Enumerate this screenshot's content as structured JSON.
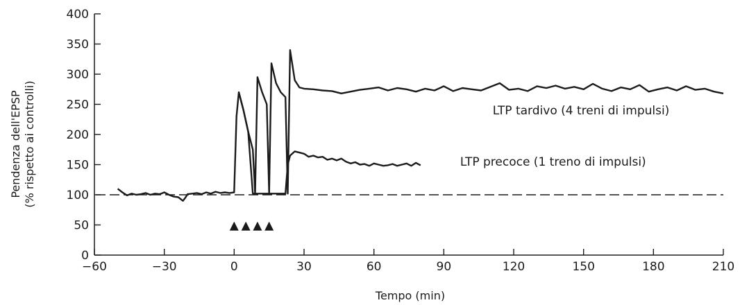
{
  "chart_data": {
    "type": "line",
    "xlabel": "Tempo (min)",
    "ylabel_lines": [
      "Pendenza dell'EPSP",
      "(% rispetto ai controlli)"
    ],
    "xlim": [
      -60,
      210
    ],
    "ylim": [
      0,
      400
    ],
    "x_ticks": [
      -60,
      -30,
      0,
      30,
      60,
      90,
      120,
      150,
      180,
      210
    ],
    "x_tick_labels": [
      "−60",
      "−30",
      "0",
      "30",
      "60",
      "90",
      "120",
      "150",
      "180",
      "210"
    ],
    "y_ticks": [
      0,
      50,
      100,
      150,
      200,
      250,
      300,
      350,
      400
    ],
    "y_tick_labels": [
      "0",
      "50",
      "100",
      "150",
      "200",
      "250",
      "300",
      "350",
      "400"
    ],
    "grid": false,
    "reference_line": {
      "y": 100,
      "style": "dashed"
    },
    "stimulus_markers": {
      "symbol": "▲",
      "x": [
        0,
        5,
        10,
        15
      ],
      "y": 50
    },
    "annotations": [
      {
        "text": "LTP tardivo (4 treni di impulsi)",
        "x": 111,
        "y": 240
      },
      {
        "text": "LTP precoce (1 treno di impulsi)",
        "x": 97,
        "y": 155
      }
    ],
    "series": [
      {
        "color": "#1a1a1a",
        "x": [
          -50,
          -48,
          -46,
          -44,
          -42,
          -40,
          -38,
          -36,
          -34,
          -32,
          -30,
          -28,
          -26,
          -24,
          -22,
          -21,
          -20,
          -18,
          -16,
          -14,
          -12,
          -10,
          -8,
          -6,
          -4,
          -2,
          0,
          1,
          2,
          4,
          6,
          8,
          9,
          10,
          12,
          14,
          15,
          16,
          18,
          20,
          22,
          23,
          24,
          26,
          28,
          30,
          32,
          34,
          36,
          38,
          40,
          42,
          44,
          46,
          48,
          50,
          52,
          54,
          56,
          58,
          60,
          62,
          64,
          66,
          68,
          70,
          72,
          74,
          76,
          78,
          80
        ],
        "y": [
          110,
          104,
          99,
          102,
          100,
          101,
          103,
          100,
          102,
          101,
          104,
          100,
          97,
          96,
          90,
          95,
          101,
          102,
          103,
          101,
          104,
          102,
          105,
          103,
          104,
          103,
          104,
          230,
          270,
          240,
          205,
          102,
          102,
          102,
          102,
          102,
          102,
          102,
          102,
          102,
          102,
          150,
          165,
          172,
          170,
          168,
          163,
          165,
          162,
          163,
          158,
          160,
          157,
          160,
          155,
          152,
          154,
          150,
          151,
          148,
          152,
          150,
          148,
          149,
          151,
          148,
          150,
          152,
          148,
          153,
          149
        ]
      },
      {
        "color": "#1a1a1a",
        "x": [
          2,
          4,
          6,
          8,
          9,
          10,
          12,
          14,
          15,
          16,
          18,
          20,
          22,
          23,
          24,
          26,
          28,
          30,
          34,
          38,
          42,
          46,
          50,
          54,
          58,
          62,
          66,
          70,
          74,
          78,
          82,
          86,
          90,
          94,
          98,
          102,
          106,
          110,
          114,
          118,
          122,
          126,
          130,
          134,
          138,
          142,
          146,
          150,
          154,
          158,
          162,
          166,
          170,
          174,
          178,
          182,
          186,
          190,
          194,
          198,
          202,
          206,
          210
        ],
        "y": [
          270,
          240,
          205,
          175,
          102,
          295,
          270,
          250,
          102,
          318,
          285,
          270,
          262,
          102,
          340,
          290,
          278,
          276,
          275,
          273,
          272,
          268,
          271,
          274,
          276,
          278,
          273,
          277,
          275,
          271,
          276,
          273,
          280,
          272,
          277,
          275,
          273,
          279,
          285,
          274,
          276,
          272,
          280,
          277,
          281,
          276,
          279,
          275,
          284,
          276,
          272,
          278,
          275,
          282,
          271,
          275,
          278,
          273,
          280,
          274,
          276,
          271,
          268
        ]
      }
    ]
  }
}
